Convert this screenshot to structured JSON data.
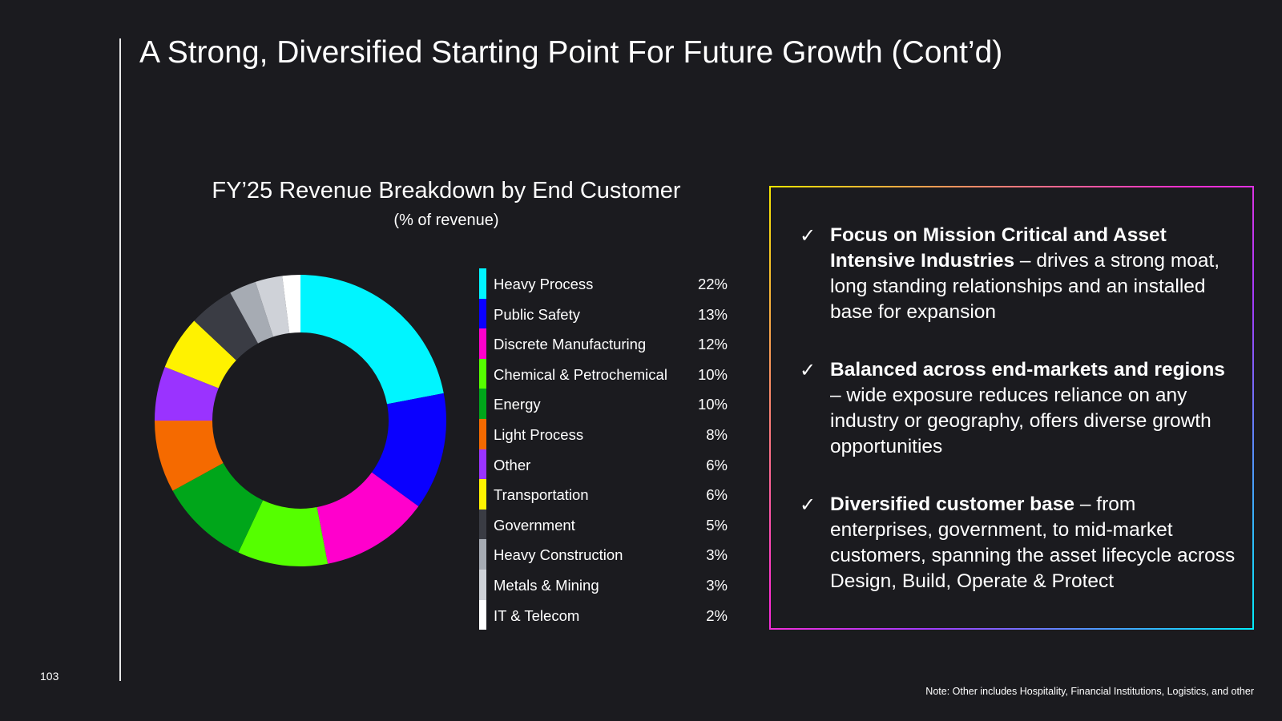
{
  "slide": {
    "title": "A Strong, Diversified Starting Point For Future Growth (Cont’d)",
    "page_number": "103",
    "footnote": "Note: Other includes Hospitality, Financial Institutions, Logistics, and other"
  },
  "chart_data": {
    "type": "pie",
    "variant": "donut",
    "title": "FY’25 Revenue Breakdown by End Customer",
    "subtitle": "(% of revenue)",
    "legend_position": "right",
    "slices": [
      {
        "label": "Heavy Process",
        "value": 22,
        "display": "22%",
        "color": "#00f5ff"
      },
      {
        "label": "Public Safety",
        "value": 13,
        "display": "13%",
        "color": "#0a00ff"
      },
      {
        "label": "Discrete Manufacturing",
        "value": 12,
        "display": "12%",
        "color": "#ff00cc"
      },
      {
        "label": "Chemical & Petrochemical",
        "value": 10,
        "display": "10%",
        "color": "#55ff00"
      },
      {
        "label": "Energy",
        "value": 10,
        "display": "10%",
        "color": "#00a61a"
      },
      {
        "label": "Light Process",
        "value": 8,
        "display": "8%",
        "color": "#f56a00"
      },
      {
        "label": "Other",
        "value": 6,
        "display": "6%",
        "color": "#9a33ff"
      },
      {
        "label": "Transportation",
        "value": 6,
        "display": "6%",
        "color": "#fff200"
      },
      {
        "label": "Government",
        "value": 5,
        "display": "5%",
        "color": "#3a3c44"
      },
      {
        "label": "Heavy Construction",
        "value": 3,
        "display": "3%",
        "color": "#a6abb3"
      },
      {
        "label": "Metals & Mining",
        "value": 3,
        "display": "3%",
        "color": "#cfd2d8"
      },
      {
        "label": "IT & Telecom",
        "value": 2,
        "display": "2%",
        "color": "#ffffff"
      }
    ]
  },
  "callout": {
    "border_gradient": [
      "#f5e600",
      "#ff2dd2",
      "#a23cff",
      "#00f0ff"
    ],
    "check_icon": "check-mark-icon",
    "bullets": [
      {
        "bold": "Focus on Mission Critical and Asset Intensive Industries",
        "text": " – drives a strong moat, long standing relationships and an installed base for expansion"
      },
      {
        "bold": "Balanced across end-markets and regions",
        "text": " – wide exposure reduces reliance on any industry or geography, offers diverse growth opportunities"
      },
      {
        "bold": "Diversified customer base",
        "text": " – from enterprises, government, to mid-market customers, spanning the asset lifecycle across Design, Build, Operate & Protect"
      }
    ]
  },
  "colors": {
    "background": "#1b1b1f",
    "text": "#ffffff"
  }
}
